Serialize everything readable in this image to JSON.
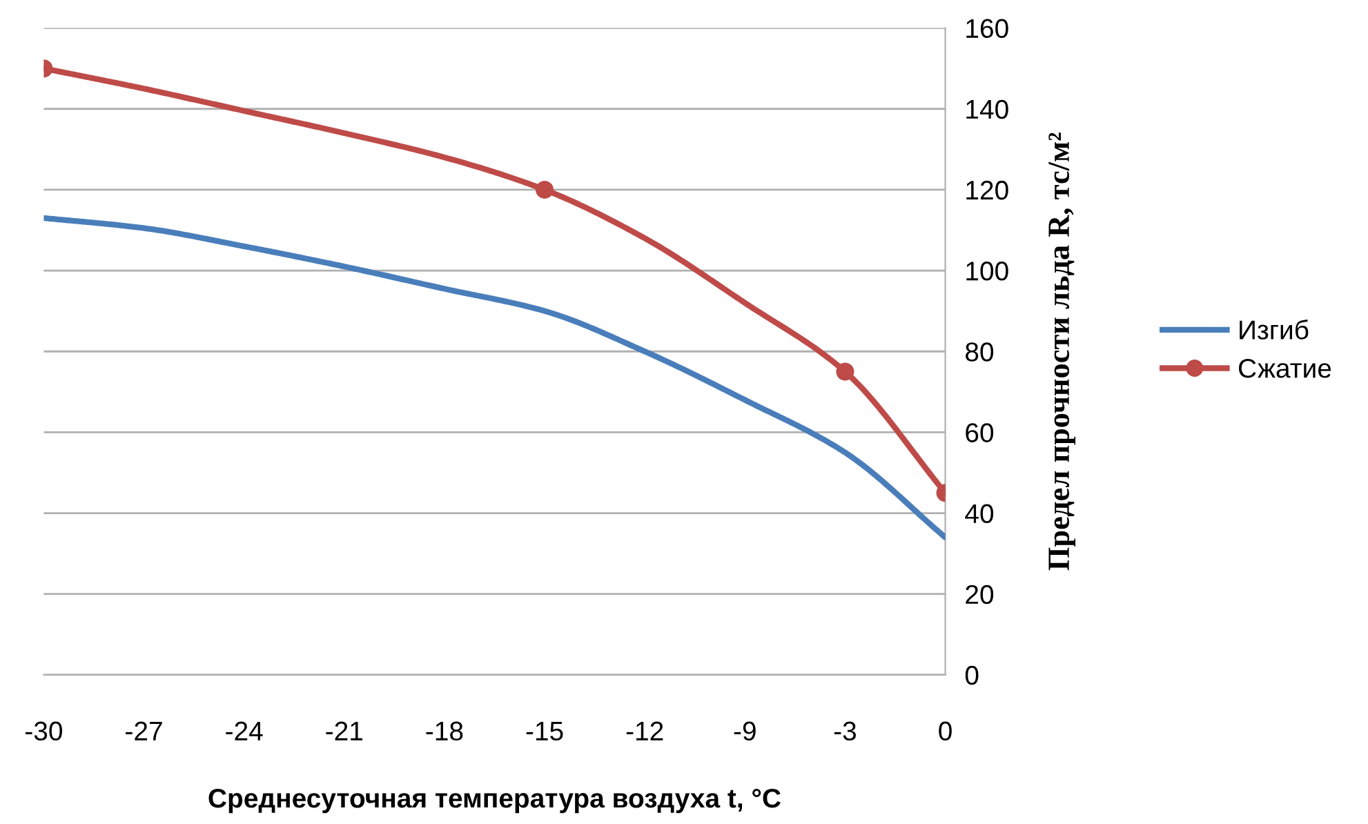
{
  "chart_data": {
    "type": "line",
    "xlabel": "Среднесуточная температура воздуха t, °C",
    "ylabel": "Предел прочности льда R, тс/м²",
    "categories": [
      "-30",
      "-27",
      "-24",
      "-21",
      "-18",
      "-15",
      "-12",
      "-9",
      "-3",
      "0"
    ],
    "series": [
      {
        "name": "Изгиб",
        "color": "#4a7ebb",
        "marker": "none",
        "values": [
          113,
          110.5,
          106,
          101,
          95.5,
          90,
          80,
          68,
          55,
          34
        ]
      },
      {
        "name": "Сжатие",
        "color": "#be4b48",
        "marker": "none",
        "values": [
          150,
          145,
          139.5,
          134,
          128,
          120,
          108,
          92,
          75,
          45
        ]
      },
      {
        "type": "scatter",
        "color": "#be4b48",
        "marker": "circle",
        "values": [
          150,
          null,
          null,
          null,
          null,
          120,
          null,
          null,
          75,
          45
        ]
      }
    ],
    "ylim": [
      0,
      160
    ],
    "yticks": [
      0,
      20,
      40,
      60,
      80,
      100,
      120,
      140,
      160
    ],
    "grid": "y",
    "legend": "right",
    "line_style": "solid"
  }
}
